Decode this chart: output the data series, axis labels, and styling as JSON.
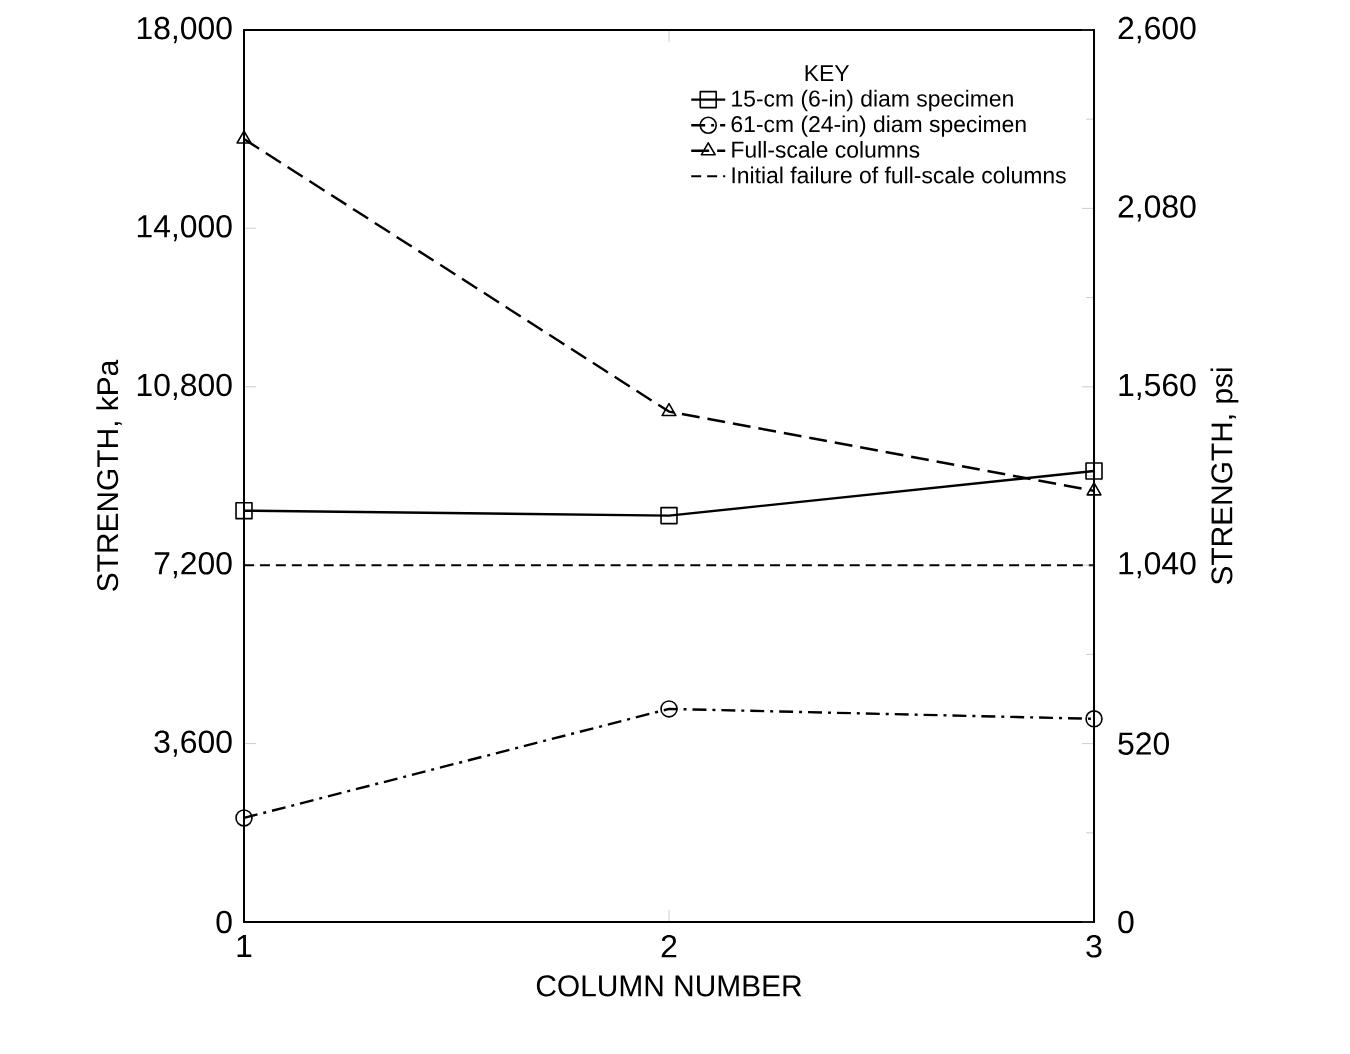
{
  "chart_data": {
    "type": "line",
    "xlabel": "COLUMN NUMBER",
    "ylabel": "STRENGTH, kPa",
    "y2label": "STRENGTH, psi",
    "legend_title": "KEY",
    "legend": "top right",
    "x": [
      1,
      2,
      3
    ],
    "xlim": [
      1,
      3
    ],
    "xticks": [
      1,
      2,
      3
    ],
    "ylim": [
      0,
      18000
    ],
    "yticks": [
      0,
      {
        "value": 3600,
        "label": "3,600"
      },
      {
        "value": 7200,
        "label": "7,200"
      },
      {
        "value": 10800,
        "label": "10,800"
      },
      {
        "value": 14000,
        "label": "14,000"
      },
      {
        "value": 18000,
        "label": "18,000"
      }
    ],
    "y2lim": [
      0,
      2600
    ],
    "y2ticks": [
      0,
      520,
      {
        "value": 1040,
        "label": "1,040"
      },
      {
        "value": 1560,
        "label": "1,560"
      },
      {
        "value": 2080,
        "label": "2,080"
      },
      {
        "value": 2600,
        "label": "2,600"
      }
    ],
    "series": [
      {
        "name": "15-cm (6-in) diam specimen",
        "color": "#000000",
        "marker": "square",
        "line_style": "solid",
        "values": [
          8300,
          8200,
          9100
        ]
      },
      {
        "name": "61-cm (24-in) diam specimen",
        "color": "#000000",
        "marker": "circle",
        "line_style": "dashdot",
        "values": [
          2100,
          4300,
          4100
        ]
      },
      {
        "name": "Full-scale columns",
        "color": "#000000",
        "marker": "triangle",
        "line_style": "dashed",
        "values": [
          15800,
          10300,
          8700
        ]
      }
    ],
    "ref_lines": [
      {
        "axis": "y",
        "value": 7200,
        "label": "Initial failure of full-scale columns",
        "line_style": "dashed",
        "color": "#000000"
      }
    ]
  }
}
